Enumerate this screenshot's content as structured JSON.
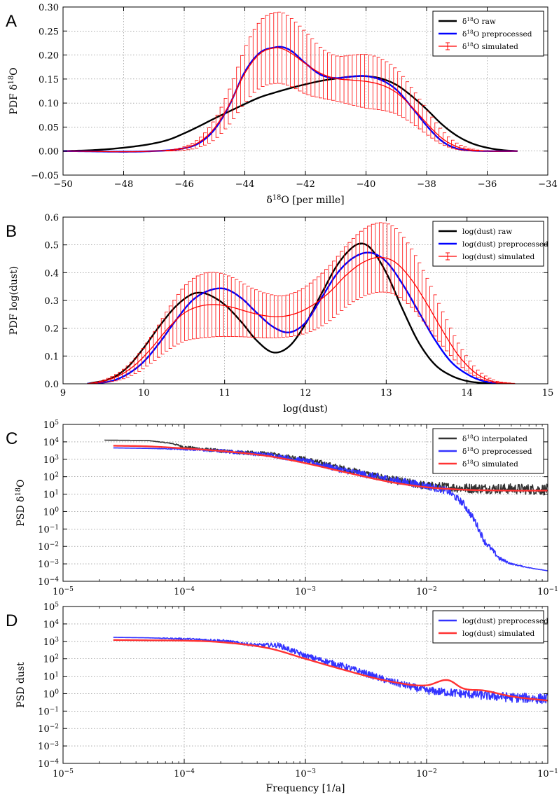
{
  "chart_data": [
    {
      "id": "A",
      "type": "line",
      "panel_label": "A",
      "xlabel": "δ¹⁸O [per mille]",
      "ylabel": "PDF δ¹⁸O",
      "xlim": [
        -50,
        -34
      ],
      "ylim": [
        -0.05,
        0.3
      ],
      "xticks": [
        -50,
        -48,
        -46,
        -44,
        -42,
        -40,
        -38,
        -36,
        -34
      ],
      "xtick_labels": [
        "−50",
        "−48",
        "−46",
        "−44",
        "−42",
        "−40",
        "−38",
        "−36",
        "−34"
      ],
      "yticks": [
        -0.05,
        0.0,
        0.05,
        0.1,
        0.15,
        0.2,
        0.25,
        0.3
      ],
      "ytick_labels": [
        "−0.05",
        "0.00",
        "0.05",
        "0.10",
        "0.15",
        "0.20",
        "0.25",
        "0.30"
      ],
      "grid": true,
      "legend_position": "top-right",
      "series": [
        {
          "name": "δ¹⁸O raw",
          "color": "#000000",
          "kind": "line",
          "x": [
            -50,
            -49,
            -48,
            -47,
            -46.5,
            -46,
            -45.5,
            -45,
            -44.5,
            -44,
            -43.5,
            -43,
            -42.5,
            -42,
            -41.5,
            -41,
            -40.5,
            -40,
            -39.5,
            -39,
            -38.5,
            -38,
            -37.5,
            -37,
            -36.5,
            -36,
            -35.5,
            -35
          ],
          "y": [
            0.0,
            0.002,
            0.007,
            0.016,
            0.024,
            0.037,
            0.052,
            0.068,
            0.083,
            0.098,
            0.112,
            0.122,
            0.131,
            0.139,
            0.146,
            0.151,
            0.155,
            0.156,
            0.151,
            0.138,
            0.115,
            0.087,
            0.056,
            0.032,
            0.016,
            0.007,
            0.002,
            0.0
          ]
        },
        {
          "name": "δ¹⁸O preprocessed",
          "color": "#0000ff",
          "kind": "line",
          "x": [
            -50,
            -47,
            -46,
            -45.5,
            -45,
            -44.5,
            -44,
            -43.5,
            -43,
            -42.8,
            -42.5,
            -42,
            -41.5,
            -41,
            -40.5,
            -40,
            -39.5,
            -39,
            -38.5,
            -38,
            -37.5,
            -37,
            -36.5,
            -36,
            -35
          ],
          "y": [
            0.0,
            0.0,
            0.006,
            0.017,
            0.045,
            0.097,
            0.165,
            0.205,
            0.216,
            0.217,
            0.21,
            0.183,
            0.159,
            0.152,
            0.155,
            0.156,
            0.148,
            0.128,
            0.092,
            0.053,
            0.021,
            0.005,
            0.001,
            0.0,
            0.0
          ]
        },
        {
          "name": "δ¹⁸O simulated",
          "color": "#ff0000",
          "kind": "errorbar",
          "x": [
            -50,
            -47,
            -46,
            -45.5,
            -45,
            -44.5,
            -44,
            -43.5,
            -43,
            -42.8,
            -42.5,
            -42,
            -41.5,
            -41,
            -40.5,
            -40,
            -39.5,
            -39,
            -38.5,
            -38,
            -37.5,
            -37,
            -36.5,
            -36,
            -35
          ],
          "y": [
            0.0,
            0.0,
            0.006,
            0.019,
            0.048,
            0.098,
            0.162,
            0.203,
            0.215,
            0.214,
            0.205,
            0.182,
            0.162,
            0.151,
            0.148,
            0.145,
            0.138,
            0.122,
            0.093,
            0.058,
            0.027,
            0.009,
            0.002,
            0.0,
            0.0
          ],
          "yerr": [
            0.0,
            0.0,
            0.004,
            0.01,
            0.022,
            0.038,
            0.058,
            0.07,
            0.074,
            0.074,
            0.071,
            0.064,
            0.052,
            0.047,
            0.052,
            0.056,
            0.053,
            0.046,
            0.036,
            0.025,
            0.014,
            0.006,
            0.002,
            0.0,
            0.0
          ]
        }
      ]
    },
    {
      "id": "B",
      "type": "line",
      "panel_label": "B",
      "xlabel": "log(dust)",
      "ylabel": "PDF log(dust)",
      "xlim": [
        9,
        15
      ],
      "ylim": [
        0.0,
        0.6
      ],
      "xticks": [
        9,
        10,
        11,
        12,
        13,
        14,
        15
      ],
      "xtick_labels": [
        "9",
        "10",
        "11",
        "12",
        "13",
        "14",
        "15"
      ],
      "yticks": [
        0.0,
        0.1,
        0.2,
        0.3,
        0.4,
        0.5,
        0.6
      ],
      "ytick_labels": [
        "0.0",
        "0.1",
        "0.2",
        "0.3",
        "0.4",
        "0.5",
        "0.6"
      ],
      "grid": true,
      "legend_position": "top-right",
      "series": [
        {
          "name": "log(dust) raw",
          "color": "#000000",
          "kind": "line",
          "x": [
            9.3,
            9.6,
            9.8,
            10.0,
            10.2,
            10.4,
            10.6,
            10.7,
            10.8,
            11.0,
            11.2,
            11.4,
            11.6,
            11.8,
            12.0,
            12.2,
            12.4,
            12.6,
            12.7,
            12.8,
            13.0,
            13.2,
            13.4,
            13.6,
            13.8,
            14.0,
            14.2,
            14.5
          ],
          "y": [
            0.0,
            0.02,
            0.06,
            0.13,
            0.21,
            0.28,
            0.323,
            0.328,
            0.321,
            0.285,
            0.225,
            0.155,
            0.113,
            0.135,
            0.215,
            0.325,
            0.43,
            0.495,
            0.505,
            0.49,
            0.4,
            0.27,
            0.15,
            0.07,
            0.03,
            0.01,
            0.003,
            0.0
          ]
        },
        {
          "name": "log(dust) preprocessed",
          "color": "#0000ff",
          "kind": "line",
          "x": [
            9.3,
            9.6,
            9.8,
            10.0,
            10.2,
            10.4,
            10.6,
            10.8,
            11.0,
            11.2,
            11.4,
            11.6,
            11.8,
            12.0,
            12.2,
            12.4,
            12.6,
            12.8,
            13.0,
            13.2,
            13.4,
            13.6,
            13.8,
            14.0,
            14.2,
            14.5
          ],
          "y": [
            0.0,
            0.01,
            0.035,
            0.08,
            0.15,
            0.23,
            0.3,
            0.335,
            0.342,
            0.31,
            0.255,
            0.205,
            0.185,
            0.22,
            0.31,
            0.4,
            0.455,
            0.472,
            0.44,
            0.36,
            0.26,
            0.16,
            0.08,
            0.035,
            0.01,
            0.0
          ]
        },
        {
          "name": "log(dust) simulated",
          "color": "#ff0000",
          "kind": "errorbar",
          "x": [
            9.3,
            9.5,
            9.7,
            9.9,
            10.1,
            10.3,
            10.5,
            10.7,
            10.9,
            11.1,
            11.3,
            11.5,
            11.7,
            11.9,
            12.1,
            12.3,
            12.5,
            12.7,
            12.9,
            13.1,
            13.3,
            13.5,
            13.7,
            13.9,
            14.1,
            14.3,
            14.6
          ],
          "y": [
            0.0,
            0.01,
            0.03,
            0.07,
            0.13,
            0.2,
            0.255,
            0.28,
            0.285,
            0.275,
            0.258,
            0.245,
            0.242,
            0.255,
            0.285,
            0.33,
            0.39,
            0.435,
            0.455,
            0.44,
            0.38,
            0.29,
            0.19,
            0.1,
            0.04,
            0.01,
            0.0
          ],
          "yerr": [
            0.0,
            0.005,
            0.015,
            0.03,
            0.05,
            0.075,
            0.1,
            0.115,
            0.115,
            0.105,
            0.09,
            0.08,
            0.075,
            0.08,
            0.09,
            0.1,
            0.11,
            0.12,
            0.125,
            0.12,
            0.105,
            0.085,
            0.06,
            0.035,
            0.015,
            0.005,
            0.0
          ]
        }
      ]
    },
    {
      "id": "C",
      "type": "line",
      "panel_label": "C",
      "xlabel": "",
      "ylabel": "PSD δ¹⁸O",
      "xscale": "log",
      "yscale": "log",
      "xlim": [
        1e-05,
        0.1
      ],
      "ylim": [
        0.0001,
        100000.0
      ],
      "xticks_exp": [
        -5,
        -4,
        -3,
        -2,
        -1
      ],
      "yticks_exp": [
        -4,
        -3,
        -2,
        -1,
        0,
        1,
        2,
        3,
        4,
        5
      ],
      "grid": true,
      "legend_position": "top-right",
      "series": [
        {
          "name": "δ¹⁸O interpolated",
          "color": "#333333",
          "kind": "noisy",
          "x": [
            2.2e-05,
            5e-05,
            8e-05,
            0.0001,
            0.0002,
            0.0005,
            0.001,
            0.002,
            0.005,
            0.01,
            0.02,
            0.05,
            0.1
          ],
          "y": [
            12500,
            12000,
            8000,
            5000,
            3000,
            2000,
            1000,
            300,
            70,
            30,
            22,
            20,
            18
          ],
          "noise_dex": [
            0.0,
            0.0,
            0.03,
            0.08,
            0.1,
            0.12,
            0.15,
            0.18,
            0.22,
            0.25,
            0.28,
            0.3,
            0.32
          ]
        },
        {
          "name": "δ¹⁸O preprocessed",
          "color": "#3333ff",
          "kind": "noisy",
          "x": [
            2.6e-05,
            5e-05,
            0.0001,
            0.0002,
            0.0005,
            0.001,
            0.002,
            0.005,
            0.01,
            0.015,
            0.02,
            0.025,
            0.03,
            0.04,
            0.05,
            0.07,
            0.1
          ],
          "y": [
            4500,
            4200,
            3800,
            3000,
            1800,
            800,
            250,
            70,
            30,
            15,
            3,
            0.3,
            0.02,
            0.002,
            0.001,
            0.0006,
            0.0004
          ],
          "noise_dex": [
            0.0,
            0.0,
            0.05,
            0.1,
            0.12,
            0.15,
            0.18,
            0.2,
            0.22,
            0.2,
            0.2,
            0.2,
            0.18,
            0.12,
            0.05,
            0.02,
            0.0
          ]
        },
        {
          "name": "δ¹⁸O simulated",
          "color": "#ff3333",
          "kind": "line",
          "x": [
            2.6e-05,
            5e-05,
            0.0001,
            0.0002,
            0.0005,
            0.001,
            0.002,
            0.005,
            0.01,
            0.02,
            0.05,
            0.1
          ],
          "y": [
            6000,
            5500,
            4200,
            3000,
            1500,
            600,
            200,
            50,
            25,
            18,
            16,
            16
          ]
        }
      ]
    },
    {
      "id": "D",
      "type": "line",
      "panel_label": "D",
      "xlabel": "Frequency [1/a]",
      "ylabel": "PSD dust",
      "xscale": "log",
      "yscale": "log",
      "xlim": [
        1e-05,
        0.1
      ],
      "ylim": [
        0.0001,
        100000.0
      ],
      "xticks_exp": [
        -5,
        -4,
        -3,
        -2,
        -1
      ],
      "yticks_exp": [
        -4,
        -3,
        -2,
        -1,
        0,
        1,
        2,
        3,
        4,
        5
      ],
      "grid": true,
      "legend_position": "top-right",
      "series": [
        {
          "name": "log(dust) preprocessed",
          "color": "#3333ff",
          "kind": "noisy",
          "x": [
            2.6e-05,
            5e-05,
            0.0001,
            0.0002,
            0.0004,
            0.0006,
            0.001,
            0.002,
            0.005,
            0.01,
            0.02,
            0.05,
            0.1
          ],
          "y": [
            1700,
            1600,
            1400,
            1100,
            600,
            600,
            150,
            40,
            5,
            1.5,
            1.0,
            0.6,
            0.5
          ],
          "noise_dex": [
            0.0,
            0.0,
            0.05,
            0.08,
            0.1,
            0.15,
            0.15,
            0.18,
            0.2,
            0.22,
            0.25,
            0.28,
            0.3
          ]
        },
        {
          "name": "log(dust) simulated",
          "color": "#ff3333",
          "kind": "line",
          "x": [
            2.6e-05,
            5e-05,
            0.0001,
            0.0002,
            0.0005,
            0.001,
            0.002,
            0.005,
            0.01,
            0.015,
            0.02,
            0.03,
            0.05,
            0.1
          ],
          "y": [
            1200,
            1150,
            1100,
            900,
            400,
            100,
            25,
            5,
            3,
            6,
            2,
            1.5,
            0.7,
            0.4
          ]
        }
      ]
    }
  ]
}
